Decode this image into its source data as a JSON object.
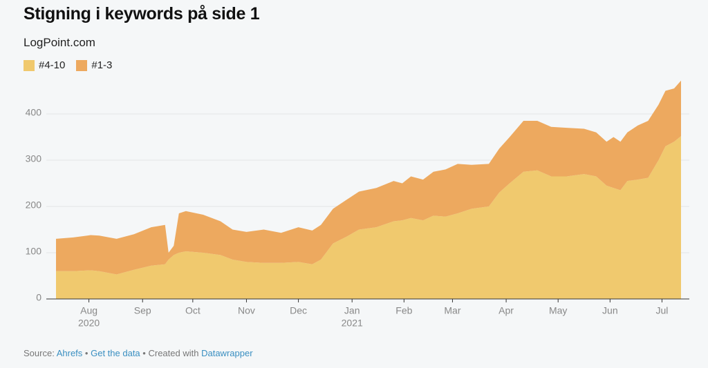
{
  "chart_data": {
    "type": "stacked_area",
    "title": "Stigning i keywords på side 1",
    "subtitle": "LogPoint.com",
    "x": [
      0,
      10,
      20,
      25,
      35,
      45,
      55,
      63,
      65,
      68,
      71,
      75,
      85,
      95,
      102,
      110,
      120,
      130,
      140,
      148,
      153,
      160,
      168,
      175,
      185,
      195,
      200,
      205,
      212,
      218,
      225,
      232,
      240,
      250,
      256,
      262,
      270,
      278,
      286,
      295,
      305,
      312,
      318,
      322,
      326,
      330,
      336,
      342,
      348,
      352,
      357,
      361
    ],
    "series": [
      {
        "name": "#4-10",
        "color": "#f0c96e",
        "values": [
          60,
          60,
          62,
          60,
          53,
          63,
          72,
          75,
          85,
          95,
          100,
          103,
          100,
          95,
          85,
          80,
          78,
          78,
          80,
          75,
          85,
          120,
          135,
          150,
          155,
          168,
          170,
          175,
          170,
          180,
          178,
          185,
          195,
          200,
          230,
          250,
          275,
          278,
          265,
          265,
          270,
          265,
          245,
          240,
          235,
          255,
          258,
          262,
          300,
          330,
          340,
          352
        ]
      },
      {
        "name": "#1-3",
        "color": "#eda95f",
        "values": [
          70,
          73,
          76,
          77,
          77,
          77,
          83,
          85,
          15,
          20,
          85,
          87,
          82,
          73,
          65,
          65,
          72,
          65,
          75,
          73,
          75,
          75,
          80,
          82,
          85,
          87,
          80,
          90,
          88,
          95,
          102,
          107,
          95,
          92,
          95,
          100,
          110,
          107,
          107,
          105,
          98,
          95,
          95,
          110,
          105,
          105,
          117,
          123,
          120,
          120,
          115,
          120
        ]
      }
    ],
    "xlim": [
      0,
      361
    ],
    "xticks": [
      {
        "value": 19,
        "label": "Aug"
      },
      {
        "value": 50,
        "label": "Sep"
      },
      {
        "value": 79,
        "label": "Oct"
      },
      {
        "value": 110,
        "label": "Nov"
      },
      {
        "value": 140,
        "label": "Dec"
      },
      {
        "value": 171,
        "label": "Jan"
      },
      {
        "value": 201,
        "label": "Feb"
      },
      {
        "value": 229,
        "label": "Mar"
      },
      {
        "value": 260,
        "label": "Apr"
      },
      {
        "value": 290,
        "label": "May"
      },
      {
        "value": 320,
        "label": "Jun"
      },
      {
        "value": 350,
        "label": "Jul"
      }
    ],
    "x_year_labels": [
      {
        "value": 19,
        "label": "2020"
      },
      {
        "value": 171,
        "label": "2021"
      }
    ],
    "ylim": [
      0,
      480
    ],
    "yticks": [
      0,
      100,
      200,
      300,
      400
    ],
    "grid": true,
    "footer": {
      "source_label": "Source:",
      "source": "Ahrefs",
      "sep": "•",
      "data_link": "Get the data",
      "created": "Created with",
      "tool": "Datawrapper"
    }
  }
}
